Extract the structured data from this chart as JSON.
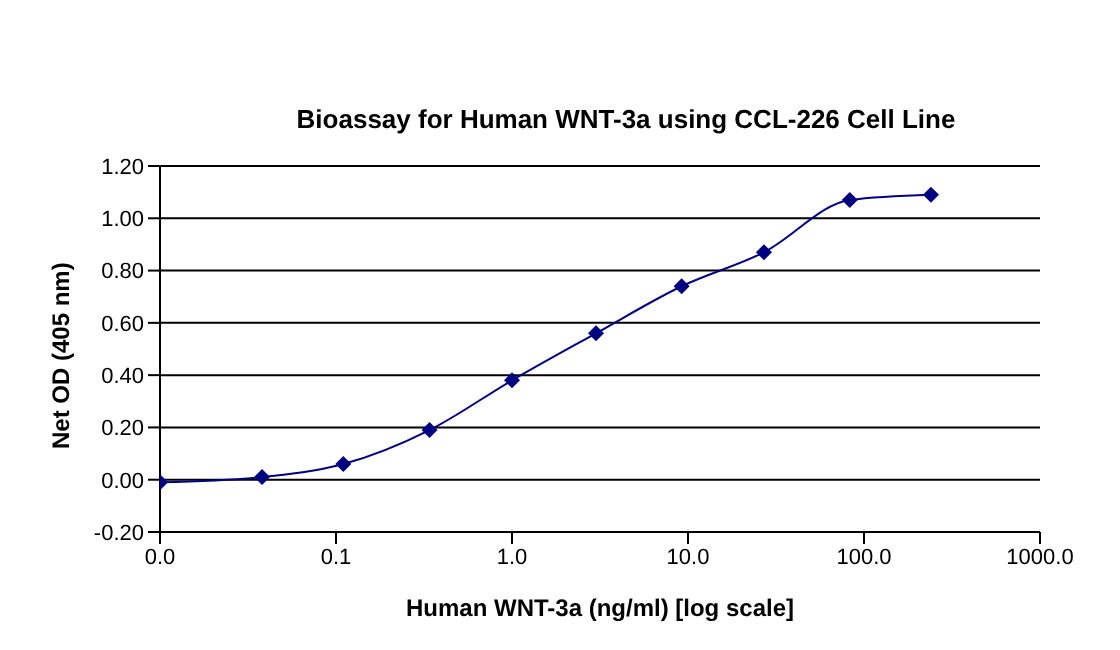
{
  "chart_data": {
    "type": "line",
    "title": "Bioassay for Human WNT-3a using CCL-226 Cell Line",
    "xlabel": "Human WNT-3a (ng/ml) [log scale]",
    "ylabel": "Net OD (405 nm)",
    "x": [
      0.01,
      0.038,
      0.11,
      0.34,
      1.0,
      3.0,
      9.2,
      27,
      83,
      240
    ],
    "series": [
      {
        "color": "#000080",
        "values": [
          -0.01,
          0.01,
          0.06,
          0.19,
          0.38,
          0.56,
          0.74,
          0.87,
          1.07,
          1.09
        ]
      }
    ],
    "log": "x",
    "xlim": [
      0.01,
      1000
    ],
    "xticks": [
      {
        "value": 0.01,
        "label": "0.0"
      },
      {
        "value": 0.1,
        "label": "0.1"
      },
      {
        "value": 1,
        "label": "1.0"
      },
      {
        "value": 10,
        "label": "10.0"
      },
      {
        "value": 100,
        "label": "100.0"
      },
      {
        "value": 1000,
        "label": "1000.0"
      }
    ],
    "ylim": [
      -0.2,
      1.2
    ],
    "yticks": [
      {
        "value": -0.2,
        "label": "-0.20"
      },
      {
        "value": 0,
        "label": "0.00"
      },
      {
        "value": 0.2,
        "label": "0.20"
      },
      {
        "value": 0.4,
        "label": "0.40"
      },
      {
        "value": 0.6,
        "label": "0.60"
      },
      {
        "value": 0.8,
        "label": "0.80"
      },
      {
        "value": 1,
        "label": "1.00"
      },
      {
        "value": 1.2,
        "label": "1.20"
      }
    ],
    "grid": "y",
    "legend": false,
    "marker": "diamond",
    "line_style": "solid"
  }
}
